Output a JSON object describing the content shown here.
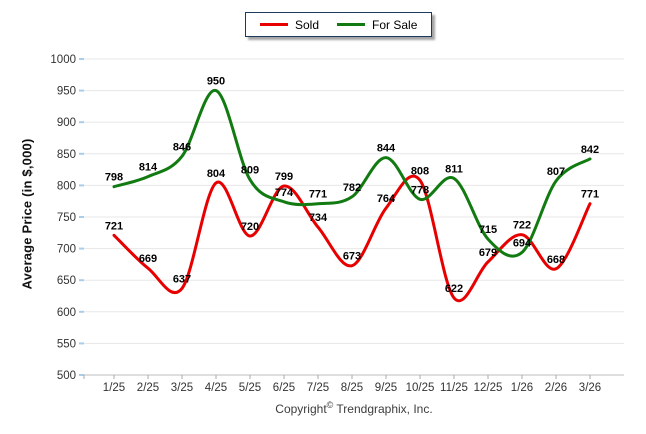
{
  "chart_data": {
    "type": "line",
    "title": "",
    "categories": [
      "1/25",
      "2/25",
      "3/25",
      "4/25",
      "5/25",
      "6/25",
      "7/25",
      "8/25",
      "9/25",
      "10/25",
      "11/25",
      "12/25",
      "1/26",
      "2/26",
      "3/26"
    ],
    "series": [
      {
        "name": "Sold",
        "color": "#e80000",
        "values": [
          721,
          669,
          637,
          804,
          720,
          799,
          734,
          673,
          764,
          808,
          622,
          679,
          722,
          668,
          771
        ]
      },
      {
        "name": "For Sale",
        "color": "#117b11",
        "values": [
          798,
          814,
          846,
          950,
          809,
          774,
          771,
          782,
          844,
          778,
          811,
          715,
          694,
          807,
          842
        ]
      }
    ],
    "xlabel": "",
    "ylabel": "Average Price (in $,000)",
    "ylim": [
      500,
      1000
    ],
    "ytick_step": 50,
    "ytick_labels": [
      "500",
      "550",
      "600",
      "650",
      "700",
      "750",
      "800",
      "850",
      "900",
      "950",
      "1000"
    ],
    "grid": true,
    "legend_position": "top-center",
    "point_labels_shown": true
  },
  "footer": {
    "prefix": "Copyright",
    "symbol": "©",
    "company": "Trendgraphix, Inc."
  }
}
